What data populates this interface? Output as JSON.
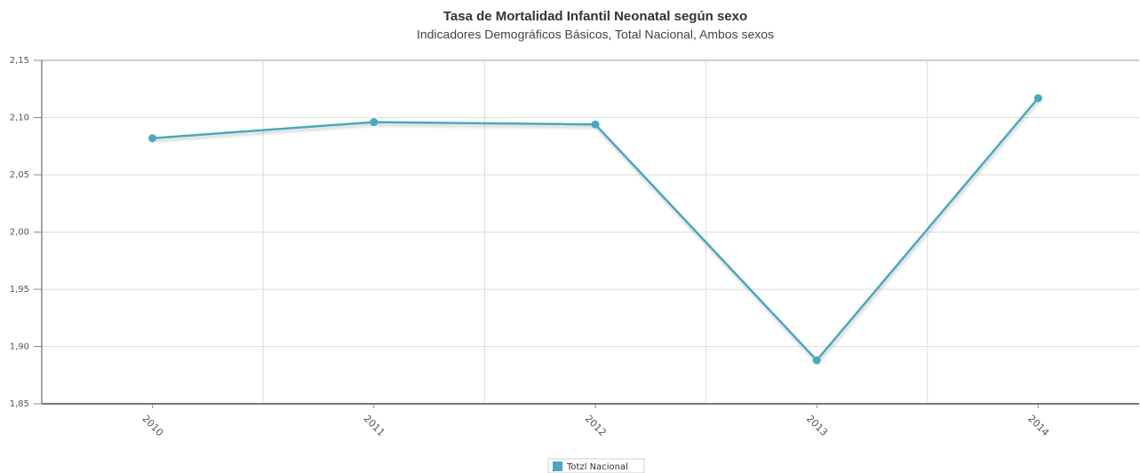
{
  "chart_data": {
    "type": "line",
    "title": "Tasa de Mortalidad Infantil Neonatal según sexo",
    "subtitle": "Indicadores Demográficos Básicos, Total Nacional, Ambos sexos",
    "categories": [
      "2010",
      "2011",
      "2012",
      "2013",
      "2014"
    ],
    "series": [
      {
        "name": "Totzl Nacional",
        "color": "#4aa8bc",
        "values": [
          2.082,
          2.096,
          2.094,
          1.888,
          2.117
        ]
      }
    ],
    "ylim": [
      1.85,
      2.15
    ],
    "yticks": [
      {
        "value": 1.85,
        "label": "1,85"
      },
      {
        "value": 1.9,
        "label": "1,90"
      },
      {
        "value": 1.95,
        "label": "1,95"
      },
      {
        "value": 2.0,
        "label": "2,00"
      },
      {
        "value": 2.05,
        "label": "2,05"
      },
      {
        "value": 2.1,
        "label": "2,10"
      },
      {
        "value": 2.15,
        "label": "2,15"
      }
    ],
    "grid": true
  }
}
